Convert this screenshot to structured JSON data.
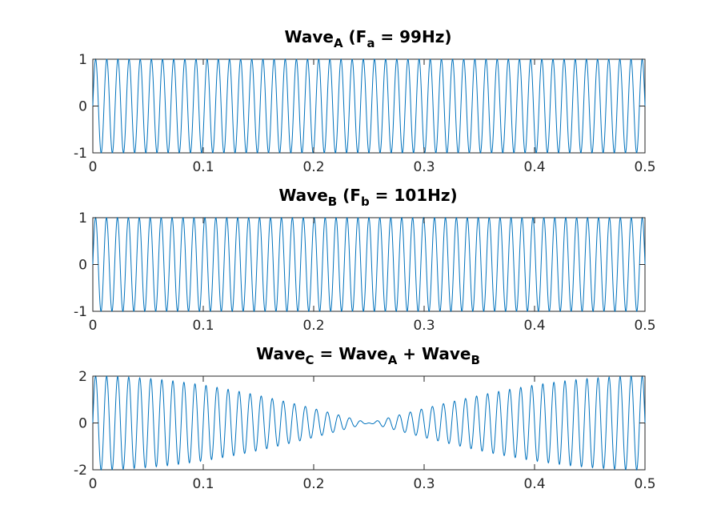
{
  "chart_data": [
    {
      "type": "line",
      "title": {
        "pre": "Wave",
        "sub": "A",
        "mid": " (F",
        "sub2": "a",
        "post": " = 99Hz)"
      },
      "frequency_hz": 99,
      "x_range": [
        0,
        0.5
      ],
      "xlim": [
        0,
        0.5
      ],
      "ylim": [
        -1,
        1
      ],
      "x_ticks": [
        0,
        0.1,
        0.2,
        0.3,
        0.4,
        0.5
      ],
      "x_tick_labels": [
        "0",
        "0.1",
        "0.2",
        "0.3",
        "0.4",
        "0.5"
      ],
      "y_ticks": [
        1,
        0,
        -1
      ],
      "y_tick_labels": [
        "1",
        "0",
        "-1"
      ],
      "grid": false,
      "color": "#0072BD"
    },
    {
      "type": "line",
      "title": {
        "pre": "Wave",
        "sub": "B",
        "mid": " (F",
        "sub2": "b",
        "post": " = 101Hz)"
      },
      "frequency_hz": 101,
      "x_range": [
        0,
        0.5
      ],
      "xlim": [
        0,
        0.5
      ],
      "ylim": [
        -1,
        1
      ],
      "x_ticks": [
        0,
        0.1,
        0.2,
        0.3,
        0.4,
        0.5
      ],
      "x_tick_labels": [
        "0",
        "0.1",
        "0.2",
        "0.3",
        "0.4",
        "0.5"
      ],
      "y_ticks": [
        1,
        0,
        -1
      ],
      "y_tick_labels": [
        "1",
        "0",
        "-1"
      ],
      "grid": false,
      "color": "#0072BD"
    },
    {
      "type": "line",
      "title": {
        "pre": "Wave",
        "sub": "C",
        "mid": " = Wave",
        "sub2": "A",
        "post": " + Wave",
        "sub3": "B"
      },
      "frequency_hz": [
        99,
        101
      ],
      "x_range": [
        0,
        0.5
      ],
      "xlim": [
        0,
        0.5
      ],
      "ylim": [
        -2,
        2
      ],
      "x_ticks": [
        0,
        0.1,
        0.2,
        0.3,
        0.4,
        0.5
      ],
      "x_tick_labels": [
        "0",
        "0.1",
        "0.2",
        "0.3",
        "0.4",
        "0.5"
      ],
      "y_ticks": [
        2,
        0,
        -2
      ],
      "y_tick_labels": [
        "2",
        "0",
        "-2"
      ],
      "grid": false,
      "color": "#0072BD"
    }
  ]
}
